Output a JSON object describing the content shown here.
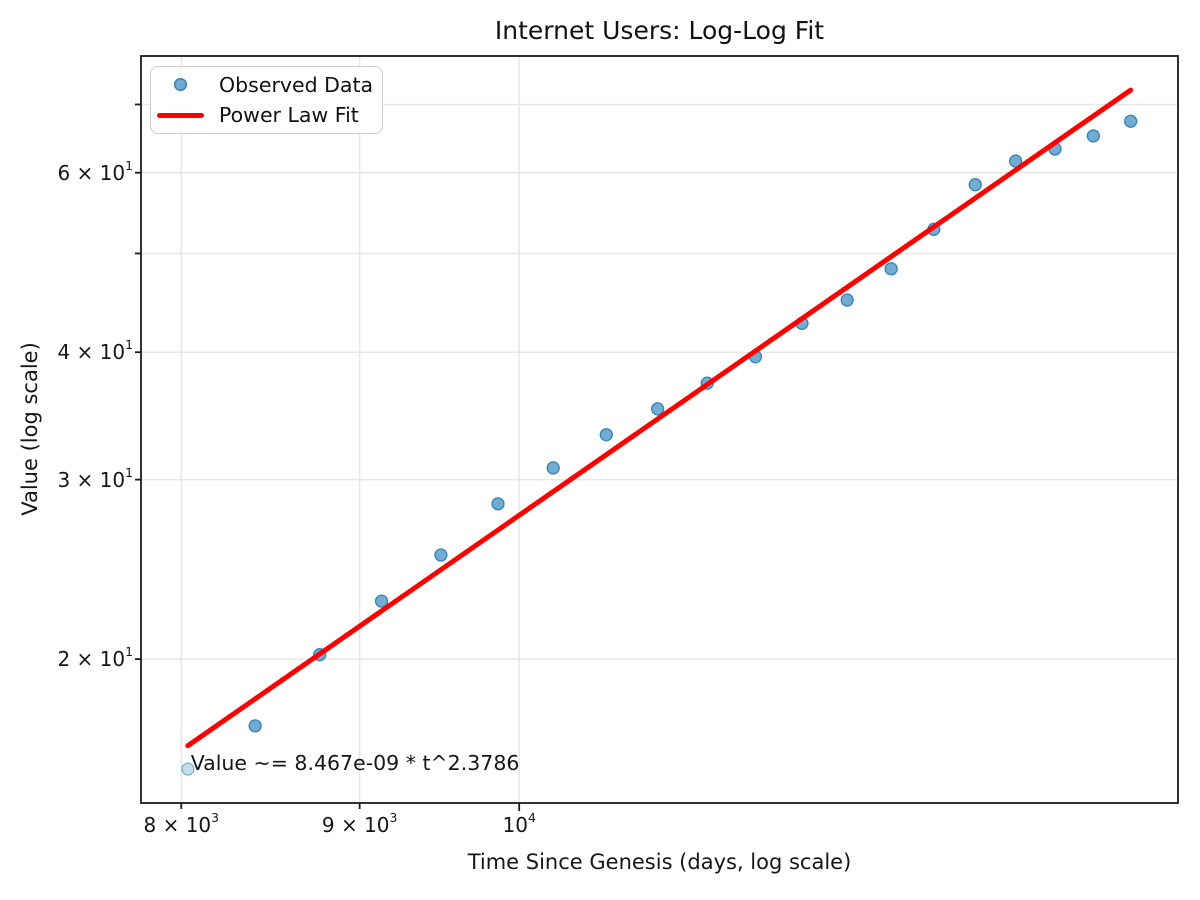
{
  "chart_data": {
    "type": "scatter",
    "title": "Internet Users: Log-Log Fit",
    "xlabel": "Time Since Genesis (days, log scale)",
    "ylabel": "Value (log scale)",
    "xscale": "log",
    "yscale": "log",
    "xlim": [
      7790,
      15450
    ],
    "ylim": [
      14.45,
      78.1
    ],
    "grid": true,
    "legend_position": "upper left",
    "series": [
      {
        "name": "Observed Data",
        "type": "scatter",
        "color": "#1f77b4",
        "alpha": 0.62,
        "faded_indices": [
          0
        ],
        "faded_alpha": 0.26,
        "x": [
          8035,
          8400,
          8766,
          9131,
          9496,
          9861,
          10227,
          10592,
          10957,
          11322,
          11688,
          12053,
          12418,
          12784,
          13149,
          13514,
          13879,
          14245,
          14610,
          14975
        ],
        "y": [
          15.6,
          17.2,
          20.2,
          22.8,
          25.3,
          28.4,
          30.8,
          33.2,
          35.2,
          37.3,
          39.6,
          42.7,
          45.0,
          48.3,
          52.8,
          58.4,
          61.6,
          63.3,
          65.2,
          67.4
        ]
      },
      {
        "name": "Power Law Fit",
        "type": "line",
        "color": "#ff0000",
        "linewidth": 5,
        "coefficient": 8.467e-09,
        "exponent": 2.3786,
        "x_range": [
          8035,
          14975
        ]
      }
    ],
    "x_ticks": [
      {
        "value": 8000,
        "mantissa": "8 × 10",
        "exponent": "3",
        "major": false
      },
      {
        "value": 9000,
        "mantissa": "9 × 10",
        "exponent": "3",
        "major": false
      },
      {
        "value": 10000,
        "mantissa": "10",
        "exponent": "4",
        "major": true
      }
    ],
    "y_ticks": [
      {
        "value": 20,
        "mantissa": "2 × 10",
        "exponent": "1"
      },
      {
        "value": 30,
        "mantissa": "3 × 10",
        "exponent": "1"
      },
      {
        "value": 40,
        "mantissa": "4 × 10",
        "exponent": "1"
      },
      {
        "value": 50,
        "mantissa": null,
        "exponent": null
      },
      {
        "value": 60,
        "mantissa": "6 × 10",
        "exponent": "1"
      },
      {
        "value": 70,
        "mantissa": null,
        "exponent": null
      }
    ],
    "annotation": {
      "text": "Value ~= 8.467e-09 * t^2.3786",
      "x": 8050,
      "y": 15.4
    }
  },
  "style": {
    "grid_color": "#e7e7e7",
    "spine_color": "#1c1c1c",
    "dot_color": "#1f77b4",
    "fit_color": "#ff0000",
    "background": "#ffffff"
  }
}
